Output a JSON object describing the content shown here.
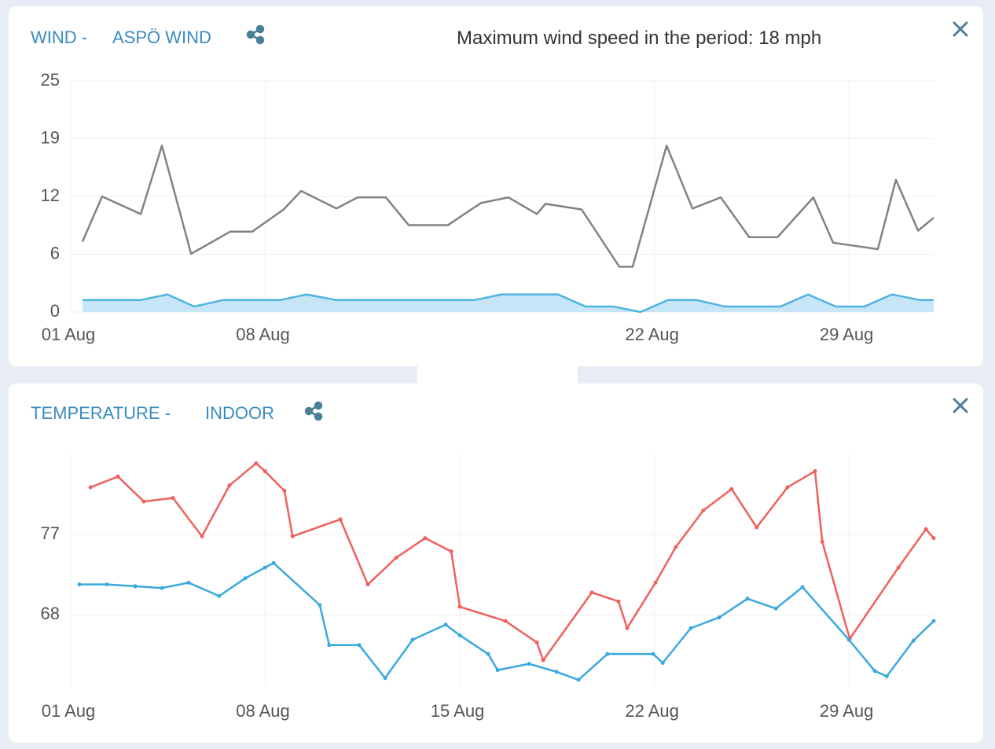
{
  "chart_data": [
    {
      "type": "line",
      "title": "WIND -",
      "subtitle": "ASPÖ WIND",
      "annotation": "Maximum wind speed in the period: 18 mph",
      "xlim": [
        1,
        32.05
      ],
      "xticks": [
        {
          "value": 1,
          "label": "01 Aug"
        },
        {
          "value": 8,
          "label": "08 Aug"
        },
        {
          "value": 22,
          "label": "22 Aug"
        },
        {
          "value": 29,
          "label": "29 Aug"
        }
      ],
      "ylim": [
        0,
        25
      ],
      "yticks": [
        0,
        {
          "value": 6.25,
          "label": "6"
        },
        {
          "value": 12.5,
          "label": "12"
        },
        {
          "value": 18.75,
          "label": "19"
        },
        25
      ],
      "grid": true,
      "series": [
        {
          "color": "#7f8384",
          "x": [
            1.42,
            2.13,
            3.52,
            4.28,
            5.33,
            6.74,
            7.53,
            8.66,
            9.29,
            10.56,
            11.32,
            12.34,
            13.16,
            14.57,
            15.76,
            16.75,
            17.77,
            18.08,
            19.38,
            20.74,
            21.22,
            22.44,
            23.37,
            24.39,
            25.41,
            26.43,
            27.72,
            28.43,
            30.04,
            30.69,
            31.49,
            32.05
          ],
          "values": [
            7.6,
            12.5,
            10.6,
            18,
            6.3,
            8.7,
            8.7,
            11.1,
            13.1,
            11.2,
            12.4,
            12.4,
            9.4,
            9.4,
            11.8,
            12.4,
            10.6,
            11.7,
            11.1,
            4.9,
            4.9,
            18,
            11.2,
            12.4,
            8.1,
            8.1,
            12.4,
            7.5,
            6.8,
            14.3,
            8.8,
            10.2
          ]
        },
        {
          "color": "#4fb3e0",
          "fill": "#c6e6f7",
          "x": [
            1.42,
            3.52,
            4.48,
            5.44,
            6.49,
            8.55,
            9.48,
            10.56,
            15.54,
            16.5,
            18.53,
            19.52,
            20.51,
            21.5,
            22.49,
            23.51,
            24.53,
            26.54,
            27.53,
            28.52,
            29.56,
            30.55,
            31.54,
            32.05
          ],
          "values": [
            1.3,
            1.3,
            1.9,
            0.6,
            1.3,
            1.3,
            1.9,
            1.3,
            1.3,
            1.9,
            1.9,
            0.6,
            0.6,
            0,
            1.3,
            1.3,
            0.6,
            0.6,
            1.9,
            0.6,
            0.6,
            1.9,
            1.3,
            1.3
          ]
        }
      ]
    },
    {
      "type": "line",
      "title": "TEMPERATURE -",
      "subtitle": "INDOOR",
      "xlim": [
        1,
        32.05
      ],
      "xticks": [
        {
          "value": 1,
          "label": "01 Aug"
        },
        {
          "value": 8,
          "label": "08 Aug"
        },
        {
          "value": 15,
          "label": "15 Aug"
        },
        {
          "value": 22,
          "label": "22 Aug"
        },
        {
          "value": 29,
          "label": "29 Aug"
        }
      ],
      "ylim": [
        60,
        86
      ],
      "yticks": [
        68,
        77
      ],
      "grid": true,
      "markers": true,
      "series": [
        {
          "color": "#f0605d",
          "x": [
            1.71,
            2.7,
            3.63,
            4.68,
            5.72,
            6.71,
            7.67,
            7.99,
            8.69,
            8.98,
            10.7,
            11.69,
            12.71,
            13.75,
            14.69,
            15,
            16.64,
            17.77,
            18,
            19.75,
            20.71,
            21.02,
            22.04,
            22.77,
            23.76,
            24.78,
            25.68,
            26.79,
            27.78,
            28.04,
            29.03,
            30.78,
            31.77,
            32.05
          ],
          "values": [
            82.3,
            83.5,
            80.7,
            81.1,
            76.8,
            82.5,
            85,
            84.1,
            81.9,
            76.8,
            78.7,
            71.4,
            74.4,
            76.6,
            75.1,
            68.9,
            67.3,
            64.9,
            62.9,
            70.5,
            69.5,
            66.5,
            71.6,
            75.6,
            79.7,
            82.1,
            77.8,
            82.3,
            84.1,
            76.2,
            65.3,
            73.3,
            77.6,
            76.6
          ]
        },
        {
          "color": "#3aa9dd",
          "x": [
            1.31,
            2.3,
            3.32,
            4.28,
            5.24,
            6.34,
            7.28,
            7.99,
            8.3,
            9.96,
            10.3,
            11.38,
            12.31,
            13.3,
            14.49,
            15,
            16.02,
            16.36,
            17.49,
            18.48,
            19.27,
            20.31,
            21.96,
            22.3,
            23.31,
            24.33,
            25.35,
            26.37,
            27.33,
            29,
            29.93,
            30.36,
            31.32,
            32.05
          ],
          "values": [
            71.4,
            71.4,
            71.2,
            71,
            71.6,
            70.1,
            72.1,
            73.3,
            73.8,
            69.1,
            64.6,
            64.6,
            60.9,
            65.2,
            66.9,
            65.7,
            63.6,
            61.8,
            62.5,
            61.6,
            60.7,
            63.6,
            63.6,
            62.6,
            66.5,
            67.7,
            69.8,
            68.7,
            71.1,
            65.2,
            61.7,
            61.1,
            65.1,
            67.3
          ]
        }
      ]
    }
  ]
}
